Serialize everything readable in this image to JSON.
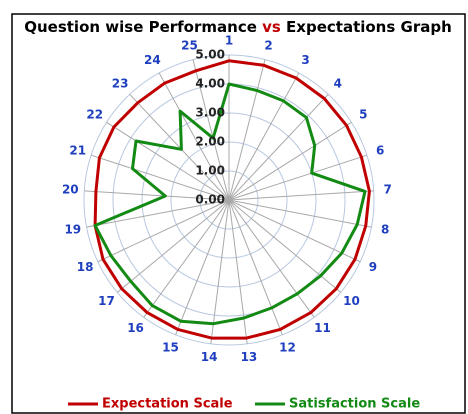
{
  "chart_data": {
    "type": "radar",
    "title": "Question wise Performance vs Expectations Graph",
    "categories": [
      "1",
      "2",
      "3",
      "4",
      "5",
      "6",
      "7",
      "8",
      "9",
      "10",
      "11",
      "12",
      "13",
      "14",
      "15",
      "16",
      "17",
      "18",
      "19",
      "20",
      "21",
      "22",
      "23",
      "24",
      "25"
    ],
    "series": [
      {
        "name": "Expectation Scale",
        "color": "#c00000",
        "values": [
          4.8,
          4.8,
          4.8,
          4.8,
          4.8,
          4.8,
          4.85,
          4.8,
          4.8,
          4.8,
          4.8,
          4.8,
          4.8,
          4.8,
          4.8,
          4.8,
          4.8,
          4.8,
          4.7,
          4.6,
          4.7,
          4.7,
          4.6,
          4.6,
          4.6
        ]
      },
      {
        "name": "Satisfaction Scale",
        "color": "#138a13",
        "values": [
          4.0,
          3.9,
          3.9,
          3.9,
          3.5,
          3.0,
          4.7,
          4.5,
          4.3,
          4.1,
          4.0,
          4.0,
          4.1,
          4.3,
          4.5,
          4.5,
          4.4,
          4.5,
          4.7,
          2.2,
          3.5,
          3.8,
          2.4,
          3.5,
          2.2
        ]
      }
    ],
    "ylim": [
      0,
      5
    ],
    "yticks": [
      {
        "value": 0,
        "label": "0.00"
      },
      {
        "value": 1,
        "label": "1.00"
      },
      {
        "value": 2,
        "label": "2.00"
      },
      {
        "value": 3,
        "label": "3.00"
      },
      {
        "value": 4,
        "label": "4.00"
      },
      {
        "value": 5,
        "label": "5.00"
      }
    ],
    "grid": true,
    "legend": "bottom"
  }
}
